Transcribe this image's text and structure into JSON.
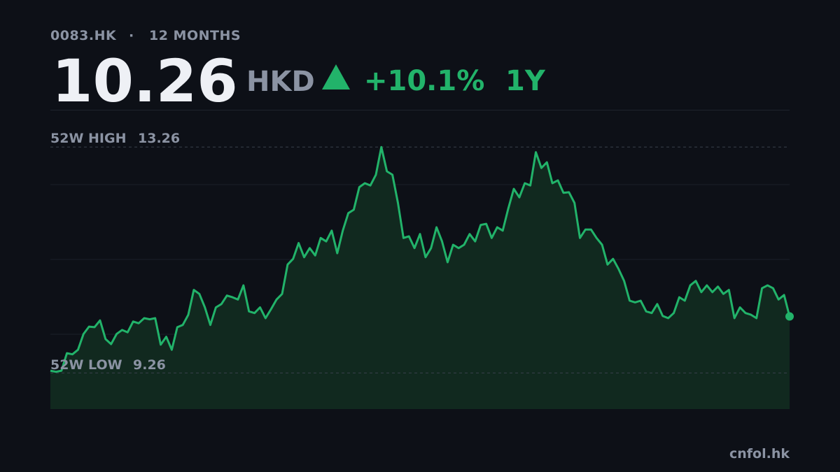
{
  "chart_data": {
    "type": "line",
    "ticker": "0083.HK",
    "separator": "·",
    "period": "12 MONTHS",
    "price": 10.26,
    "currency": "HKD",
    "change": "+10.1%",
    "range": "1Y",
    "high_label": "52W HIGH",
    "high": 13.26,
    "low_label": "52W LOW",
    "low": 9.26,
    "source": "cnfol.hk",
    "color": "#22b36a",
    "fill_color": "#11291f",
    "ylim": [
      8.62,
      13.92
    ],
    "values": [
      9.3,
      9.28,
      9.3,
      9.61,
      9.59,
      9.67,
      9.95,
      10.08,
      10.07,
      10.19,
      9.86,
      9.77,
      9.95,
      10.02,
      9.98,
      10.17,
      10.14,
      10.23,
      10.21,
      10.23,
      9.76,
      9.9,
      9.67,
      10.07,
      10.11,
      10.29,
      10.73,
      10.66,
      10.42,
      10.11,
      10.42,
      10.48,
      10.63,
      10.6,
      10.56,
      10.81,
      10.35,
      10.32,
      10.42,
      10.23,
      10.39,
      10.56,
      10.66,
      11.18,
      11.28,
      11.56,
      11.31,
      11.47,
      11.34,
      11.65,
      11.59,
      11.78,
      11.38,
      11.78,
      12.09,
      12.15,
      12.55,
      12.62,
      12.58,
      12.77,
      13.26,
      12.83,
      12.77,
      12.27,
      11.65,
      11.68,
      11.47,
      11.72,
      11.31,
      11.47,
      11.84,
      11.59,
      11.22,
      11.53,
      11.47,
      11.53,
      11.72,
      11.59,
      11.88,
      11.9,
      11.65,
      11.84,
      11.78,
      12.17,
      12.52,
      12.37,
      12.62,
      12.58,
      13.17,
      12.89,
      12.99,
      12.62,
      12.67,
      12.45,
      12.46,
      12.27,
      11.65,
      11.8,
      11.8,
      11.65,
      11.53,
      11.18,
      11.28,
      11.1,
      10.89,
      10.54,
      10.51,
      10.54,
      10.35,
      10.32,
      10.48,
      10.27,
      10.23,
      10.32,
      10.6,
      10.54,
      10.81,
      10.89,
      10.69,
      10.81,
      10.69,
      10.79,
      10.66,
      10.73,
      10.23,
      10.42,
      10.32,
      10.29,
      10.23,
      10.76,
      10.81,
      10.76,
      10.56,
      10.64,
      10.26
    ]
  }
}
